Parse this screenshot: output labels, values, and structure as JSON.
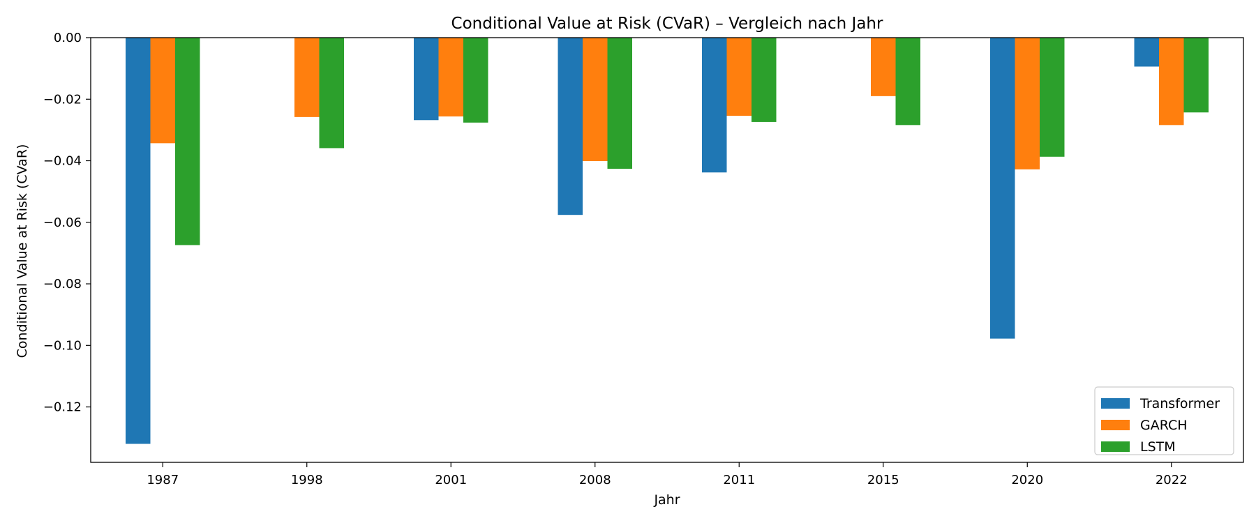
{
  "chart_data": {
    "type": "bar",
    "title": "Conditional Value at Risk (CVaR) – Vergleich nach Jahr",
    "xlabel": "Jahr",
    "ylabel": "Conditional Value at Risk (CVaR)",
    "categories": [
      "1987",
      "1998",
      "2001",
      "2008",
      "2011",
      "2015",
      "2020",
      "2022"
    ],
    "ylim": [
      -0.138,
      0.0
    ],
    "yticks": [
      0.0,
      -0.02,
      -0.04,
      -0.06,
      -0.08,
      -0.1,
      -0.12
    ],
    "ytick_labels": [
      "0.00",
      "−0.02",
      "−0.04",
      "−0.06",
      "−0.08",
      "−0.10",
      "−0.12"
    ],
    "grid": false,
    "legend_position": "bottom-right",
    "series": [
      {
        "name": "Transformer",
        "color": "#1f77b4",
        "values": [
          -0.132,
          null,
          -0.0268,
          -0.0576,
          -0.0438,
          null,
          -0.0978,
          -0.0094
        ]
      },
      {
        "name": "GARCH",
        "color": "#ff7f0e",
        "values": [
          -0.0343,
          -0.0258,
          -0.0256,
          -0.0401,
          -0.0254,
          -0.019,
          -0.0428,
          -0.0284
        ]
      },
      {
        "name": "LSTM",
        "color": "#2ca02c",
        "values": [
          -0.0674,
          -0.0359,
          -0.0276,
          -0.0426,
          -0.0274,
          -0.0284,
          -0.0387,
          -0.0243
        ]
      }
    ]
  }
}
